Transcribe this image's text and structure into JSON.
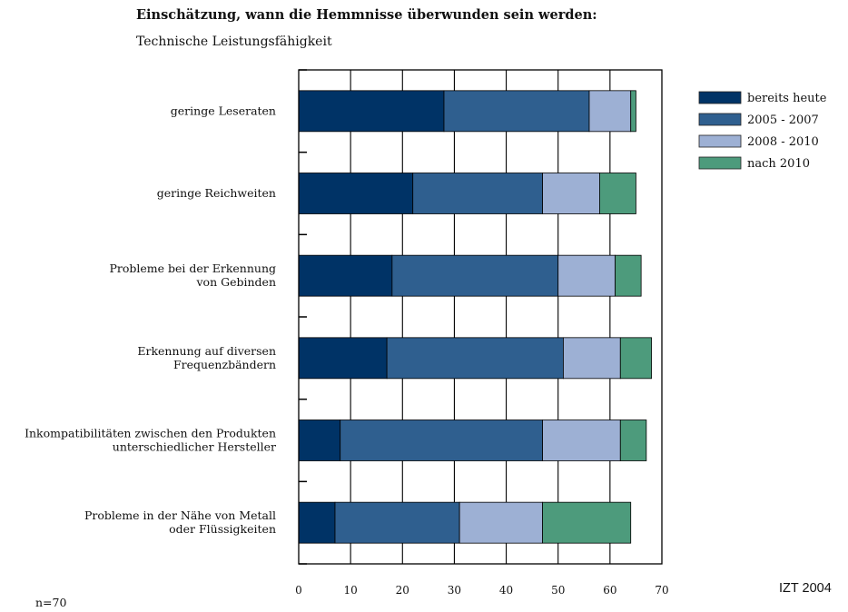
{
  "title": "Einschätzung, wann die Hemmnisse überwunden sein werden:",
  "subtitle": "Technische Leistungsfähigkeit",
  "sample_note": "n=70",
  "source_note": "IZT 2004",
  "colors": {
    "bereits heute": "#003366",
    "2005 - 2007": "#2f5f8f",
    "2008 - 2010": "#9db0d4",
    "nach 2010": "#4d9b7c"
  },
  "chart_data": {
    "type": "bar",
    "orientation": "horizontal",
    "stacked": true,
    "categories": [
      [
        "geringe Leseraten"
      ],
      [
        "geringe Reichweiten"
      ],
      [
        "Probleme bei der Erkennung",
        "von Gebinden"
      ],
      [
        "Erkennung auf diversen",
        "Frequenzbändern"
      ],
      [
        "Inkompatibilitäten zwischen den Produkten",
        "unterschiedlicher Hersteller"
      ],
      [
        "Probleme in der Nähe von Metall",
        "oder Flüssigkeiten"
      ]
    ],
    "series": [
      {
        "name": "bereits heute",
        "values": [
          28,
          22,
          18,
          17,
          8,
          7
        ]
      },
      {
        "name": "2005 - 2007",
        "values": [
          28,
          25,
          32,
          34,
          39,
          24
        ]
      },
      {
        "name": "2008 - 2010",
        "values": [
          8,
          11,
          11,
          11,
          15,
          16
        ]
      },
      {
        "name": "nach 2010",
        "values": [
          1,
          7,
          5,
          6,
          5,
          17
        ]
      }
    ],
    "xlim": [
      0,
      70
    ],
    "xticks": [
      0,
      10,
      20,
      30,
      40,
      50,
      60,
      70
    ],
    "grid": true,
    "legend": "top-right"
  }
}
